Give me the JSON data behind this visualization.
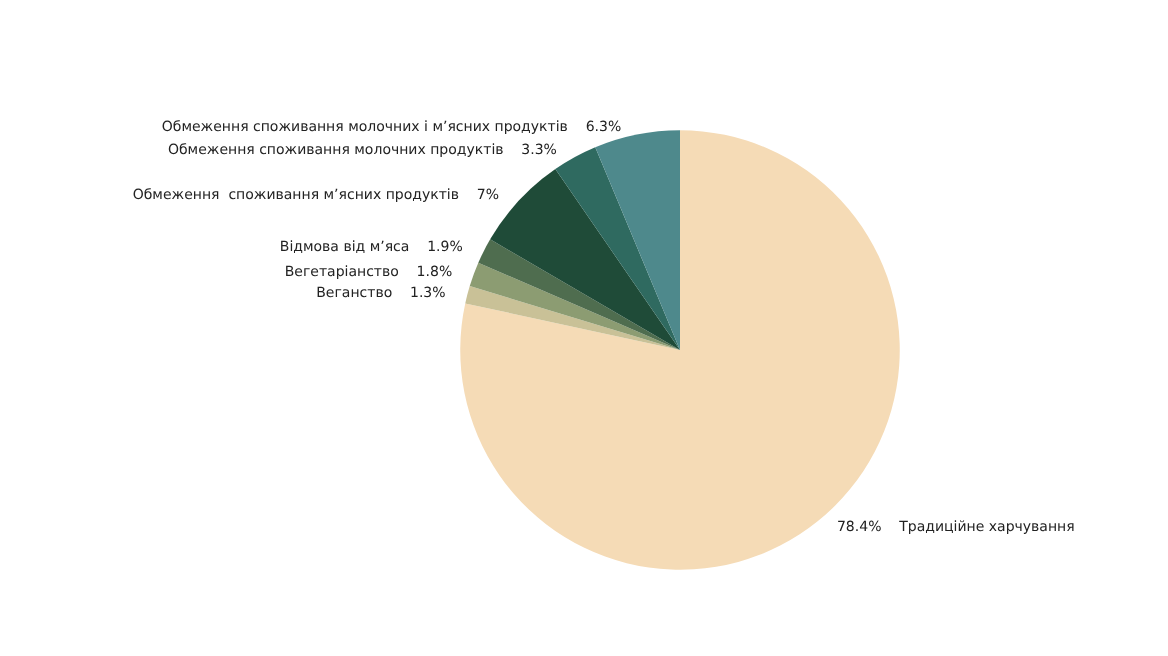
{
  "chart_data": {
    "type": "pie",
    "categories": [
      "Традиційне харчування",
      "Веганство",
      "Вегетаріанство",
      "Відмова від м’яса",
      "Обмеження  споживання м’ясних продуктів",
      "Обмеження споживання молочних продуктів",
      "Обмеження споживання молочних і м’ясних продуктів"
    ],
    "values": [
      78.4,
      1.3,
      1.8,
      1.9,
      7,
      3.3,
      6.3
    ],
    "value_labels": [
      "78.4%",
      "1.3%",
      "1.8%",
      "1.9%",
      "7%",
      "3.3%",
      "6.3%"
    ],
    "colors": [
      "#f5dbb6",
      "#c9c197",
      "#8c9c72",
      "#4f6d4f",
      "#1f4b38",
      "#2f6a60",
      "#4e898c"
    ],
    "legend": false
  }
}
